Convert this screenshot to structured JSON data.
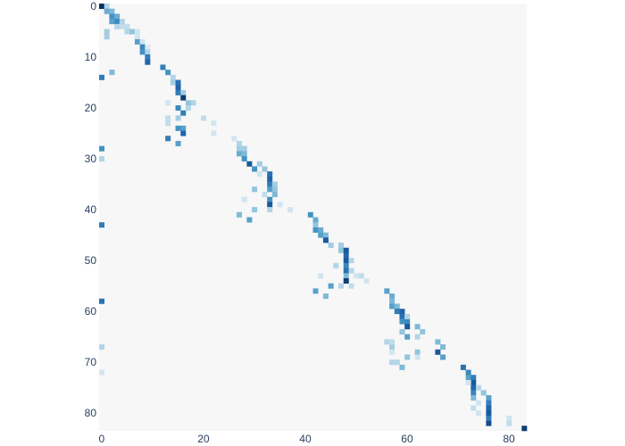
{
  "chart_data": {
    "type": "heatmap",
    "title": "",
    "xlabel": "",
    "ylabel": "",
    "rows": 84,
    "cols": 84,
    "xlim": [
      0,
      83
    ],
    "ylim": [
      0,
      83
    ],
    "y_axis": "reversed",
    "x_ticks": [
      0,
      20,
      40,
      60,
      80
    ],
    "y_ticks": [
      0,
      10,
      20,
      30,
      40,
      50,
      60,
      70,
      80
    ],
    "x_tick_labels": [
      "0",
      "20",
      "40",
      "60",
      "80"
    ],
    "y_tick_labels": [
      "0",
      "10",
      "20",
      "30",
      "40",
      "50",
      "60",
      "70",
      "80"
    ],
    "colorscale": [
      "#f7f7f7",
      "#d1e5f0",
      "#92c5de",
      "#4393c3",
      "#2166ac",
      "#053061"
    ],
    "background_value": 0,
    "cells": [
      [
        0,
        0,
        1.0
      ],
      [
        0,
        1,
        0.3
      ],
      [
        1,
        1,
        0.5
      ],
      [
        1,
        2,
        0.45
      ],
      [
        2,
        2,
        0.6
      ],
      [
        2,
        3,
        0.5
      ],
      [
        3,
        2,
        0.55
      ],
      [
        3,
        3,
        0.65
      ],
      [
        3,
        4,
        0.3
      ],
      [
        4,
        3,
        0.3
      ],
      [
        4,
        4,
        0.25
      ],
      [
        4,
        5,
        0.25
      ],
      [
        5,
        5,
        0.3
      ],
      [
        5,
        1,
        0.35
      ],
      [
        5,
        6,
        0.4
      ],
      [
        5,
        7,
        0.2
      ],
      [
        6,
        1,
        0.35
      ],
      [
        6,
        7,
        0.2
      ],
      [
        7,
        7,
        0.55
      ],
      [
        7,
        8,
        0.2
      ],
      [
        8,
        8,
        0.65
      ],
      [
        8,
        9,
        0.15
      ],
      [
        9,
        8,
        0.6
      ],
      [
        9,
        9,
        0.3
      ],
      [
        10,
        9,
        0.7
      ],
      [
        11,
        9,
        0.8
      ],
      [
        12,
        12,
        0.7
      ],
      [
        13,
        2,
        0.45
      ],
      [
        13,
        13,
        0.6
      ],
      [
        14,
        0,
        0.7
      ],
      [
        14,
        14,
        0.3
      ],
      [
        15,
        14,
        0.35
      ],
      [
        15,
        15,
        0.75
      ],
      [
        16,
        15,
        0.8
      ],
      [
        17,
        15,
        0.7
      ],
      [
        17,
        16,
        0.35
      ],
      [
        18,
        16,
        0.95
      ],
      [
        19,
        13,
        0.2
      ],
      [
        19,
        17,
        0.4
      ],
      [
        19,
        18,
        0.3
      ],
      [
        20,
        15,
        0.65
      ],
      [
        20,
        17,
        0.3
      ],
      [
        21,
        16,
        0.7
      ],
      [
        22,
        13,
        0.25
      ],
      [
        22,
        15,
        0.35
      ],
      [
        22,
        20,
        0.25
      ],
      [
        23,
        22,
        0.2
      ],
      [
        23,
        13,
        0.25
      ],
      [
        24,
        15,
        0.6
      ],
      [
        24,
        16,
        0.55
      ],
      [
        25,
        16,
        0.8
      ],
      [
        25,
        22,
        0.2
      ],
      [
        26,
        13,
        0.7
      ],
      [
        27,
        15,
        0.55
      ],
      [
        26,
        26,
        0.2
      ],
      [
        27,
        27,
        0.3
      ],
      [
        28,
        0,
        0.6
      ],
      [
        28,
        27,
        0.35
      ],
      [
        28,
        28,
        0.35
      ],
      [
        29,
        27,
        0.5
      ],
      [
        29,
        28,
        0.45
      ],
      [
        30,
        28,
        0.6
      ],
      [
        30,
        0,
        0.3
      ],
      [
        31,
        29,
        0.85
      ],
      [
        32,
        30,
        0.6
      ],
      [
        32,
        32,
        0.4
      ],
      [
        33,
        33,
        0.75
      ],
      [
        34,
        33,
        0.8
      ],
      [
        35,
        33,
        0.7
      ],
      [
        35,
        34,
        0.35
      ],
      [
        36,
        30,
        0.4
      ],
      [
        36,
        33,
        0.55
      ],
      [
        36,
        34,
        0.4
      ],
      [
        37,
        34,
        0.45
      ],
      [
        38,
        33,
        0.6
      ],
      [
        38,
        28,
        0.2
      ],
      [
        39,
        33,
        0.85
      ],
      [
        39,
        35,
        0.2
      ],
      [
        40,
        30,
        0.4
      ],
      [
        40,
        33,
        0.3
      ],
      [
        40,
        37,
        0.2
      ],
      [
        41,
        27,
        0.45
      ],
      [
        41,
        41,
        0.6
      ],
      [
        42,
        29,
        0.55
      ],
      [
        42,
        42,
        0.5
      ],
      [
        43,
        0,
        0.7
      ],
      [
        43,
        42,
        0.4
      ],
      [
        44,
        42,
        0.6
      ],
      [
        44,
        43,
        0.5
      ],
      [
        45,
        43,
        0.55
      ],
      [
        45,
        44,
        0.45
      ],
      [
        46,
        44,
        0.85
      ],
      [
        47,
        45,
        0.35
      ],
      [
        47,
        47,
        0.35
      ],
      [
        48,
        47,
        0.4
      ],
      [
        48,
        48,
        0.85
      ],
      [
        49,
        48,
        0.8
      ],
      [
        50,
        48,
        0.85
      ],
      [
        50,
        49,
        0.3
      ],
      [
        51,
        46,
        0.3
      ],
      [
        51,
        48,
        0.65
      ],
      [
        52,
        48,
        0.75
      ],
      [
        52,
        49,
        0.3
      ],
      [
        53,
        43,
        0.2
      ],
      [
        53,
        48,
        0.45
      ],
      [
        53,
        50,
        0.2
      ],
      [
        53,
        51,
        0.25
      ],
      [
        54,
        48,
        0.95
      ],
      [
        54,
        52,
        0.2
      ],
      [
        55,
        45,
        0.55
      ],
      [
        55,
        47,
        0.3
      ],
      [
        55,
        49,
        0.25
      ],
      [
        56,
        42,
        0.55
      ],
      [
        56,
        56,
        0.55
      ],
      [
        57,
        44,
        0.45
      ],
      [
        57,
        57,
        0.5
      ],
      [
        58,
        0,
        0.75
      ],
      [
        58,
        57,
        0.45
      ],
      [
        59,
        57,
        0.55
      ],
      [
        59,
        58,
        0.45
      ],
      [
        60,
        58,
        0.7
      ],
      [
        60,
        59,
        0.8
      ],
      [
        61,
        59,
        0.75
      ],
      [
        62,
        59,
        0.6
      ],
      [
        62,
        60,
        0.65
      ],
      [
        63,
        60,
        0.85
      ],
      [
        63,
        62,
        0.45
      ],
      [
        64,
        59,
        0.4
      ],
      [
        64,
        63,
        0.4
      ],
      [
        65,
        60,
        0.55
      ],
      [
        65,
        62,
        0.3
      ],
      [
        66,
        56,
        0.3
      ],
      [
        66,
        66,
        0.45
      ],
      [
        67,
        0,
        0.3
      ],
      [
        67,
        57,
        0.35
      ],
      [
        67,
        67,
        0.45
      ],
      [
        68,
        62,
        0.4
      ],
      [
        68,
        66,
        0.85
      ],
      [
        69,
        60,
        0.4
      ],
      [
        69,
        67,
        0.55
      ],
      [
        70,
        57,
        0.3
      ],
      [
        70,
        58,
        0.3
      ],
      [
        71,
        59,
        0.45
      ],
      [
        71,
        71,
        0.75
      ],
      [
        72,
        72,
        0.65
      ],
      [
        72,
        0,
        0.2
      ],
      [
        73,
        72,
        0.55
      ],
      [
        73,
        73,
        0.7
      ],
      [
        74,
        73,
        0.85
      ],
      [
        75,
        73,
        0.8
      ],
      [
        76,
        73,
        0.65
      ],
      [
        76,
        75,
        0.4
      ],
      [
        77,
        73,
        0.45
      ],
      [
        77,
        76,
        0.55
      ],
      [
        78,
        76,
        0.7
      ],
      [
        79,
        73,
        0.25
      ],
      [
        79,
        76,
        0.8
      ],
      [
        80,
        76,
        0.85
      ],
      [
        81,
        76,
        0.7
      ],
      [
        81,
        80,
        0.2
      ],
      [
        82,
        76,
        0.9
      ],
      [
        82,
        80,
        0.25
      ],
      [
        83,
        83,
        0.95
      ],
      [
        74,
        72,
        0.2
      ],
      [
        75,
        74,
        0.3
      ],
      [
        78,
        74,
        0.2
      ],
      [
        80,
        74,
        0.2
      ],
      [
        61,
        60,
        0.3
      ],
      [
        66,
        57,
        0.25
      ],
      [
        68,
        57,
        0.2
      ],
      [
        69,
        62,
        0.2
      ],
      [
        31,
        31,
        0.35
      ],
      [
        33,
        31,
        0.2
      ],
      [
        37,
        32,
        0.25
      ]
    ]
  }
}
